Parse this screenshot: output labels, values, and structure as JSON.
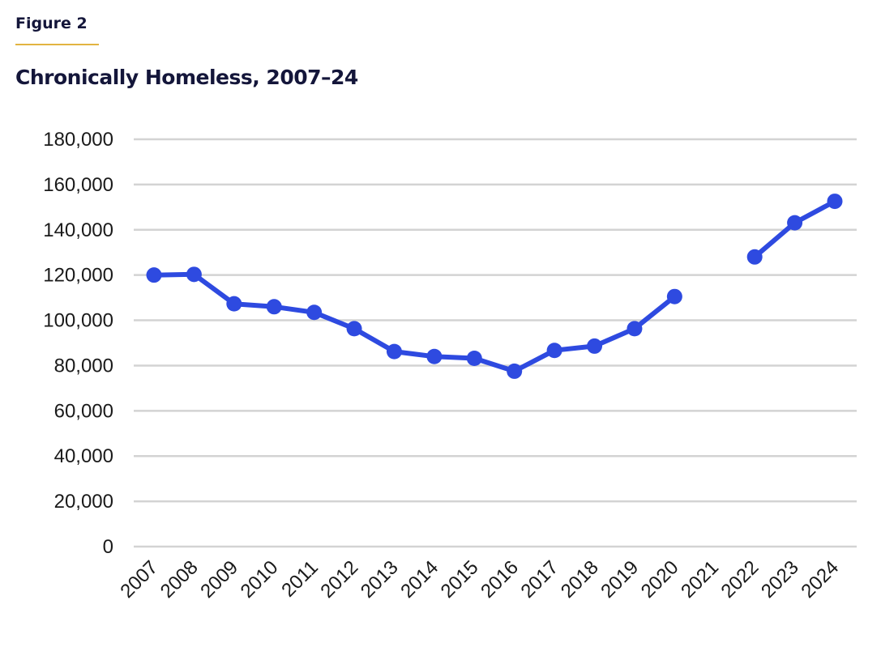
{
  "header": {
    "figure_label": "Figure 2"
  },
  "colors": {
    "line": "#2e4ae0",
    "grid": "#d3d3d3",
    "text": "#14163a",
    "accent_rule": "#e2b441"
  },
  "chart_data": {
    "type": "line",
    "title": "Chronically Homeless, 2007–24",
    "xlabel": "",
    "ylabel": "",
    "ylim": [
      0,
      180000
    ],
    "yticks": [
      0,
      20000,
      40000,
      60000,
      80000,
      100000,
      120000,
      140000,
      160000,
      180000
    ],
    "ytick_labels": [
      "0",
      "20,000",
      "40,000",
      "60,000",
      "80,000",
      "100,000",
      "120,000",
      "140,000",
      "160,000",
      "180,000"
    ],
    "categories": [
      "2007",
      "2008",
      "2009",
      "2010",
      "2011",
      "2012",
      "2013",
      "2014",
      "2015",
      "2016",
      "2017",
      "2018",
      "2019",
      "2020",
      "2021",
      "2022",
      "2023",
      "2024"
    ],
    "series": [
      {
        "name": "Chronically Homeless",
        "values": [
          120000,
          120300,
          107300,
          106000,
          103500,
          96300,
          86200,
          84000,
          83200,
          77500,
          86700,
          88600,
          96300,
          110500,
          null,
          128000,
          143100,
          152600
        ]
      }
    ],
    "grid": true,
    "legend": "none"
  }
}
